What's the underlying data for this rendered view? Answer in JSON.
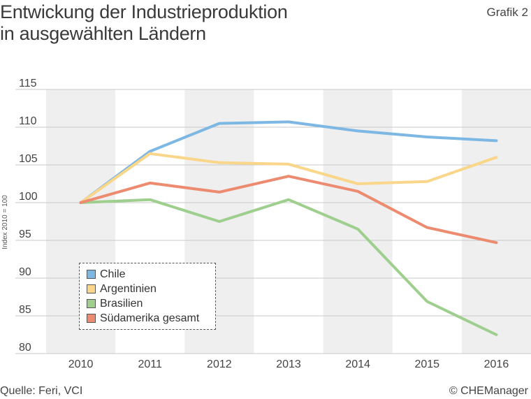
{
  "header": {
    "title_line1": "Entwickung der Industrieproduktion",
    "title_line2": "in ausgewählten Ländern",
    "figure_label": "Grafik 2"
  },
  "footer": {
    "source": "Quelle: Feri, VCI",
    "copyright": "© CHEManager"
  },
  "chart_data": {
    "type": "line",
    "title": "Entwickung der Industrieproduktion in ausgewählten Ländern",
    "xlabel": "",
    "ylabel": "Index 2010 = 100",
    "x": [
      "2010",
      "2011",
      "2012",
      "2013",
      "2014",
      "2015",
      "2016"
    ],
    "ylim": [
      80,
      115
    ],
    "yticks": [
      80,
      85,
      90,
      95,
      100,
      105,
      110,
      115
    ],
    "grid": true,
    "legend": "bottom-left",
    "series": [
      {
        "name": "Chile",
        "color": "#7db7e4",
        "values": [
          100,
          106.8,
          110.5,
          110.7,
          109.5,
          108.7,
          108.2
        ]
      },
      {
        "name": "Argentinien",
        "color": "#f9d68a",
        "values": [
          100,
          106.5,
          105.3,
          105.1,
          102.5,
          102.8,
          106.0
        ]
      },
      {
        "name": "Brasilien",
        "color": "#9fcf8e",
        "values": [
          100,
          100.4,
          97.5,
          100.4,
          96.5,
          86.9,
          82.5
        ]
      },
      {
        "name": "Südamerika gesamt",
        "color": "#ec8b6f",
        "values": [
          100,
          102.6,
          101.4,
          103.5,
          101.5,
          96.7,
          94.7
        ]
      }
    ]
  }
}
